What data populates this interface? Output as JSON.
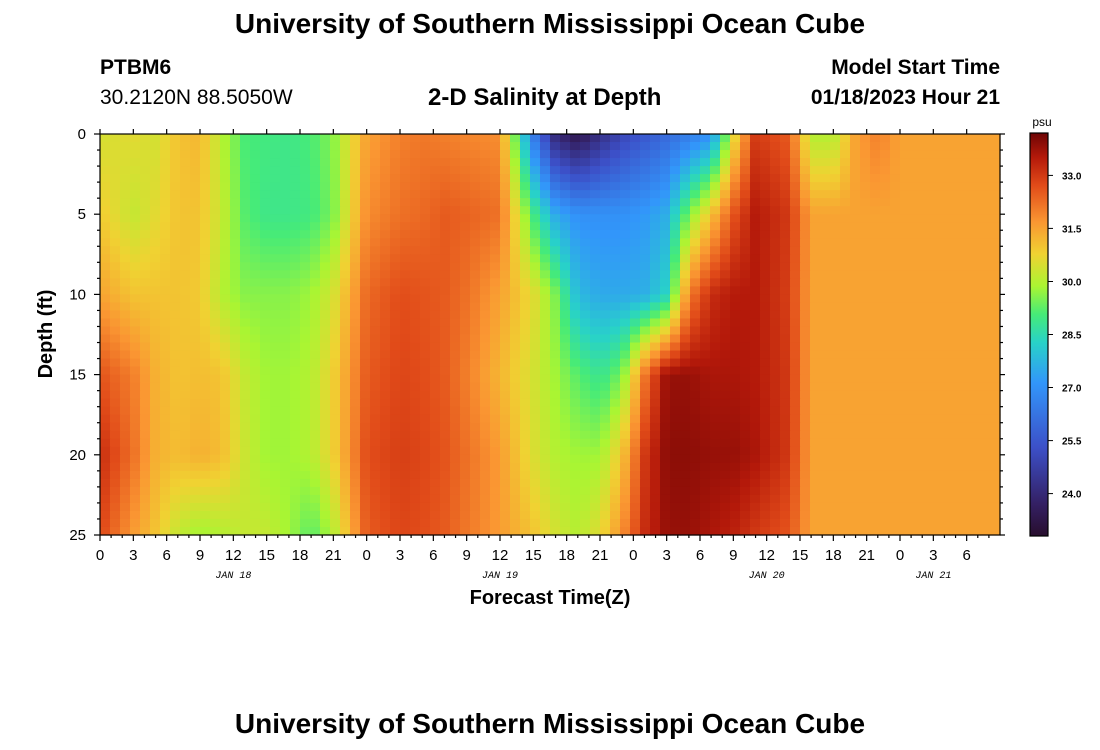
{
  "page": {
    "title": "University of Southern Mississippi Ocean Cube",
    "footer_title": "University of Southern Mississippi Ocean Cube"
  },
  "station": {
    "id": "PTBM6",
    "coords": "30.2120N  88.5050W"
  },
  "model": {
    "start_label": "Model Start Time",
    "start_value": "01/18/2023 Hour 21"
  },
  "chart_data": {
    "type": "heatmap",
    "title": "2-D Salinity at Depth",
    "xlabel": "Forecast Time(Z)",
    "ylabel": "Depth (ft)",
    "colorbar_label": "psu",
    "colorbar_ticks": [
      "33.0",
      "31.5",
      "30.0",
      "28.5",
      "27.0",
      "25.5",
      "24.0"
    ],
    "colorbar_range": [
      22.8,
      34.2
    ],
    "x_range_hours": [
      0,
      81
    ],
    "y_range_ft": [
      0,
      25
    ],
    "y_ticks": [
      "0",
      "5",
      "10",
      "15",
      "20",
      "25"
    ],
    "x_tick_labels": [
      "0",
      "3",
      "6",
      "9",
      "12",
      "15",
      "18",
      "21",
      "0",
      "3",
      "6",
      "9",
      "12",
      "15",
      "18",
      "21",
      "0",
      "3",
      "6",
      "9",
      "12",
      "15",
      "18",
      "21",
      "0",
      "3",
      "6"
    ],
    "date_labels": [
      {
        "label": "JAN 18",
        "hour": 12
      },
      {
        "label": "JAN 19",
        "hour": 36
      },
      {
        "label": "JAN 20",
        "hour": 60
      },
      {
        "label": "JAN 21",
        "hour": 75
      }
    ],
    "x_grid_hours": [
      0,
      3,
      5,
      7,
      9,
      11,
      13,
      15,
      17,
      19,
      21,
      24,
      27,
      29,
      31,
      33,
      36,
      39,
      41,
      43,
      45,
      47,
      49,
      51,
      53,
      55,
      57,
      59,
      62,
      64,
      66,
      68,
      70,
      72,
      74,
      76,
      78,
      81
    ],
    "depth_rows_ft": [
      0,
      5,
      10,
      15,
      20,
      25
    ],
    "salinity_psu": [
      [
        30.4,
        30.6,
        30.4,
        31.0,
        31.2,
        30.0,
        29.1,
        29.0,
        28.9,
        29.1,
        29.6,
        31.5,
        32.0,
        32.1,
        32.0,
        31.9,
        31.8,
        26.5,
        24.0,
        23.3,
        24.2,
        25.0,
        25.5,
        26.0,
        26.5,
        27.0,
        30.5,
        33.0,
        32.5,
        30.0,
        30.0,
        31.5,
        32.0,
        31.5,
        31.5,
        31.5,
        31.5,
        31.5
      ],
      [
        30.9,
        30.2,
        30.6,
        31.0,
        31.0,
        30.2,
        29.2,
        28.9,
        28.9,
        29.0,
        29.5,
        31.8,
        32.2,
        32.3,
        32.5,
        32.4,
        32.2,
        29.0,
        27.5,
        27.0,
        27.0,
        27.0,
        27.2,
        27.6,
        29.5,
        31.0,
        32.6,
        33.5,
        33.0,
        31.5,
        31.5,
        31.5,
        31.5,
        31.5,
        31.5,
        31.5,
        31.5,
        31.5
      ],
      [
        31.5,
        31.0,
        31.0,
        31.0,
        30.9,
        30.0,
        29.6,
        29.6,
        29.6,
        29.8,
        30.4,
        32.3,
        32.7,
        32.6,
        32.5,
        32.2,
        31.5,
        30.6,
        29.5,
        27.8,
        27.5,
        27.5,
        27.6,
        28.3,
        32.0,
        33.2,
        33.5,
        33.5,
        32.9,
        31.5,
        31.5,
        31.5,
        31.5,
        31.5,
        31.5,
        31.5,
        31.5,
        31.5
      ],
      [
        32.6,
        32.0,
        31.3,
        31.0,
        31.1,
        31.0,
        30.2,
        29.8,
        29.8,
        30.0,
        30.8,
        32.5,
        32.8,
        32.7,
        32.5,
        32.0,
        31.2,
        30.4,
        29.8,
        29.2,
        28.8,
        29.5,
        32.1,
        33.8,
        33.8,
        33.6,
        33.6,
        33.5,
        33.0,
        31.5,
        31.5,
        31.5,
        31.5,
        31.5,
        31.5,
        31.5,
        31.5,
        31.5
      ],
      [
        33.2,
        32.2,
        31.3,
        31.1,
        31.3,
        31.1,
        30.3,
        29.8,
        29.8,
        30.0,
        30.8,
        32.7,
        32.9,
        32.8,
        32.6,
        32.2,
        31.6,
        30.5,
        30.0,
        29.8,
        29.8,
        31.0,
        33.0,
        33.9,
        33.9,
        33.8,
        33.8,
        33.6,
        33.0,
        31.5,
        31.5,
        31.5,
        31.5,
        31.5,
        31.5,
        31.5,
        31.5,
        31.5
      ],
      [
        32.8,
        31.6,
        31.0,
        30.2,
        29.8,
        30.0,
        30.2,
        30.2,
        29.8,
        29.2,
        30.0,
        32.5,
        32.8,
        32.7,
        32.5,
        32.1,
        31.6,
        31.0,
        30.4,
        30.0,
        30.6,
        31.8,
        33.2,
        33.8,
        33.8,
        33.6,
        33.4,
        33.0,
        32.6,
        31.5,
        31.5,
        31.5,
        31.5,
        31.5,
        31.5,
        31.5,
        31.5,
        31.5
      ]
    ]
  }
}
